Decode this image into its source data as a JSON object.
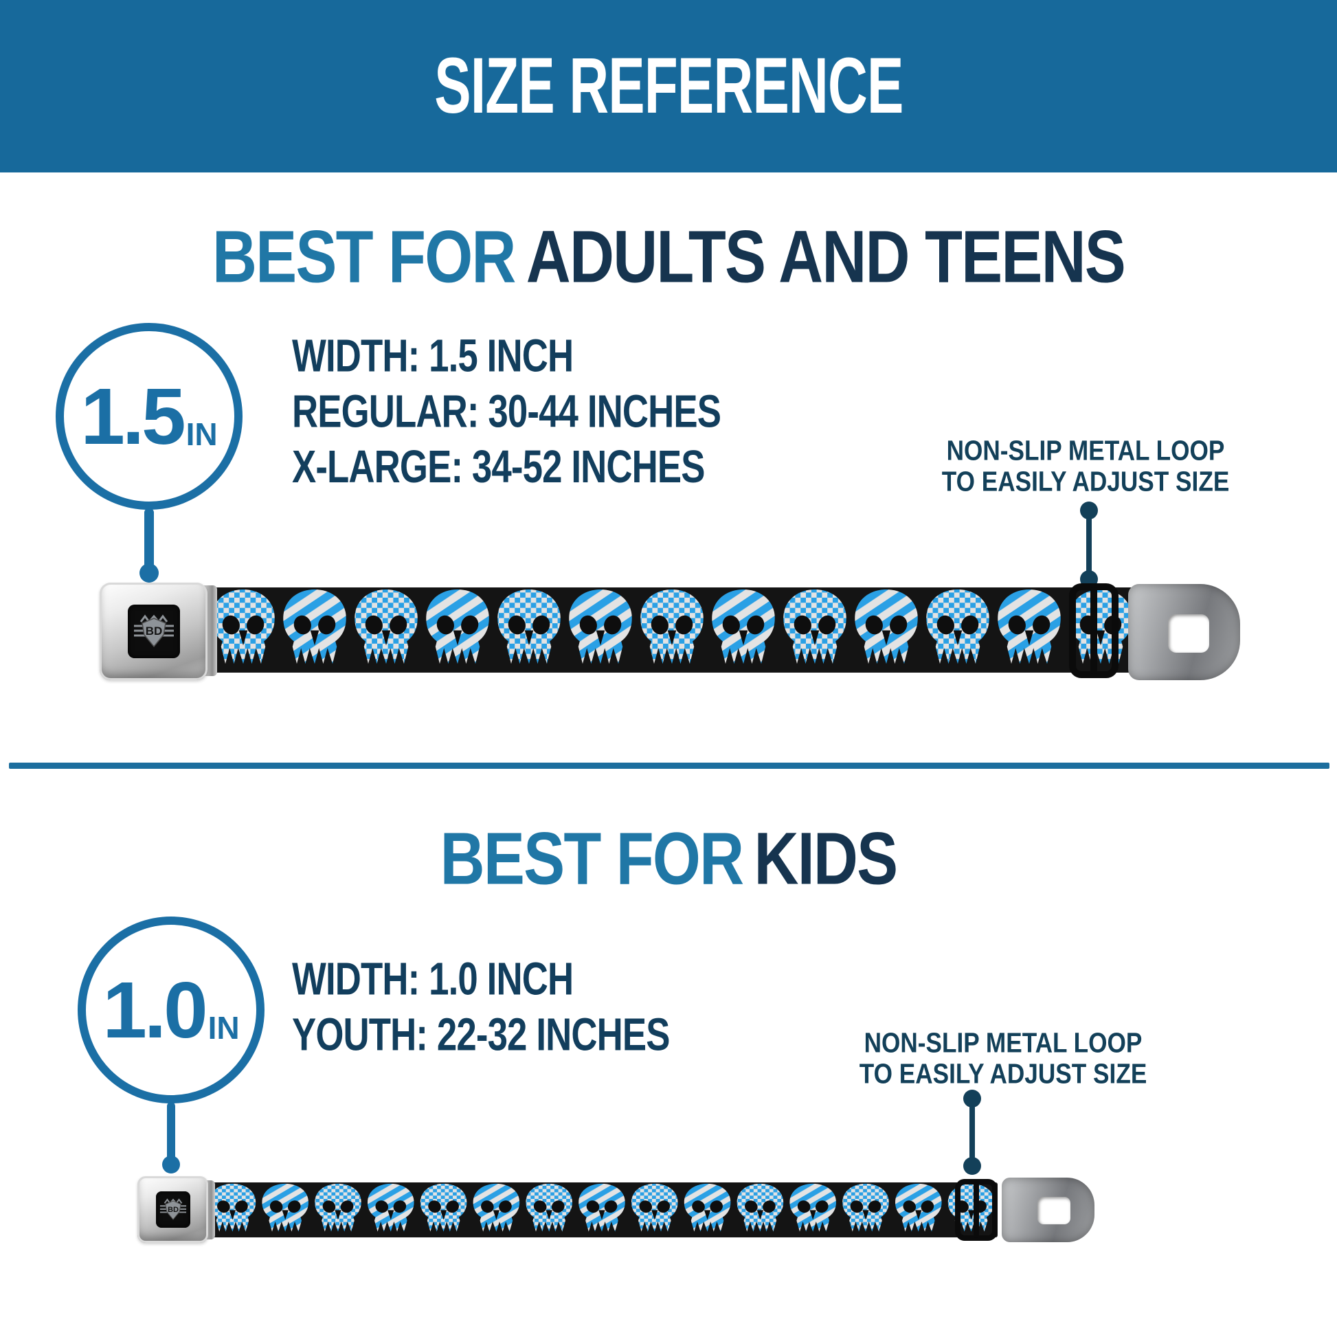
{
  "header": {
    "title": "SIZE REFERENCE"
  },
  "sections": {
    "adults": {
      "heading_accent": "BEST FOR",
      "heading_main": "ADULTS AND TEENS",
      "width_badge": {
        "value": "1.5",
        "unit": "IN"
      },
      "specs": [
        "WIDTH: 1.5 INCH",
        "REGULAR: 30-44 INCHES",
        "X-LARGE: 34-52 INCHES"
      ],
      "callout_lines": [
        "NON-SLIP METAL LOOP",
        "TO EASILY ADJUST SIZE"
      ],
      "belt": {
        "buckle_logo": "BD",
        "skull_count": 13,
        "pattern": [
          "checker",
          "stripe"
        ]
      }
    },
    "kids": {
      "heading_accent": "BEST FOR",
      "heading_main": "KIDS",
      "width_badge": {
        "value": "1.0",
        "unit": "IN"
      },
      "specs": [
        "WIDTH: 1.0 INCH",
        "YOUTH: 22-32 INCHES"
      ],
      "callout_lines": [
        "NON-SLIP METAL LOOP",
        "TO EASILY ADJUST SIZE"
      ],
      "belt": {
        "buckle_logo": "BD",
        "skull_count": 15,
        "pattern": [
          "checker",
          "stripe"
        ]
      }
    }
  },
  "colors": {
    "banner_bg": "#17699B",
    "heading_accent": "#2077A6",
    "heading_main": "#16344F",
    "spec_text": "#123E5D",
    "callout_text": "#134059",
    "badge_blue": "#1B6FA5",
    "divider": "#1C6E9E",
    "belt_black": "#141414",
    "pattern_blue": "#2AA0E5",
    "pattern_white": "#E3E3E3"
  }
}
